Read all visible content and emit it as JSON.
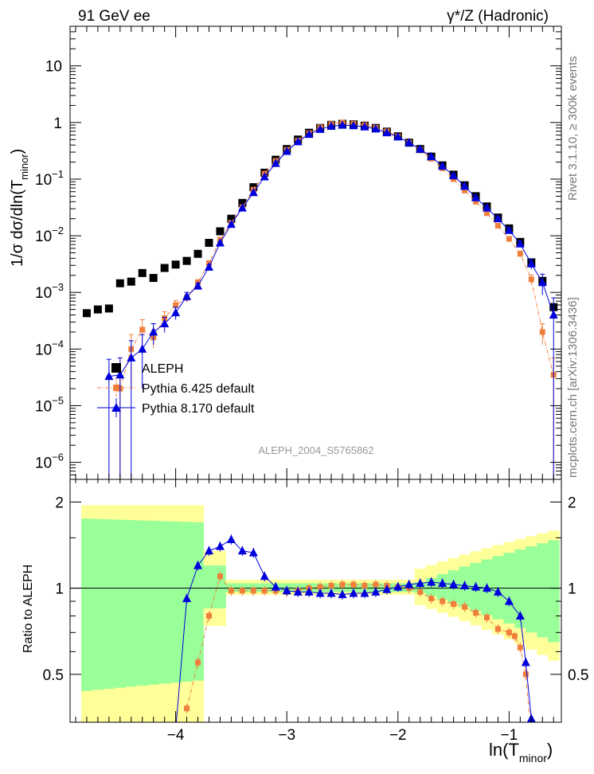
{
  "header": {
    "left": "91 GeV ee",
    "right": "γ*/Z (Hadronic)"
  },
  "side_labels": {
    "rivet": "Rivet 3.1.10, ≥ 300k events",
    "mcplots": "mcplots.cern.ch [arXiv:1306.3436]"
  },
  "analysis_id": "ALEPH_2004_S5765862",
  "axes": {
    "main_ylabel": "1/σ  dσ/dln(T",
    "main_ylabel_sub": "minor",
    "main_ylabel_close": ")",
    "ratio_ylabel": "Ratio to ALEPH",
    "xlabel": "ln(T",
    "xlabel_sub": "minor",
    "xlabel_close": ")",
    "x_ticks": [
      "−4",
      "−3",
      "−2",
      "−1"
    ],
    "y_ticks_main": [
      {
        "base": "10",
        "exp": "−6"
      },
      {
        "base": "10",
        "exp": "−5"
      },
      {
        "base": "10",
        "exp": "−4"
      },
      {
        "base": "10",
        "exp": "−3"
      },
      {
        "base": "10",
        "exp": "−2"
      },
      {
        "base": "10",
        "exp": "−1"
      },
      {
        "base": "1",
        "exp": ""
      },
      {
        "base": "10",
        "exp": ""
      }
    ],
    "y_ticks_ratio": [
      "0.5",
      "1",
      "2"
    ]
  },
  "legend": [
    {
      "label": "ALEPH",
      "color": "#000000",
      "marker": "square"
    },
    {
      "label": "Pythia 6.425 default",
      "color": "#f07f3c",
      "marker": "square"
    },
    {
      "label": "Pythia 8.170 default",
      "color": "#0000dd",
      "marker": "triangle"
    }
  ],
  "chart_data": {
    "type": "scatter",
    "title": "91 GeV ee — γ*/Z (Hadronic)",
    "xlabel": "ln(T_minor)",
    "ylabel": "1/σ dσ/dln(T_minor)",
    "ratio_ylabel": "Ratio to ALEPH",
    "xlim": [
      -4.95,
      -0.53
    ],
    "ylim": [
      5e-07,
      50
    ],
    "ylog": true,
    "ratio_ylim": [
      0.34,
      2.4
    ],
    "x": [
      -4.8,
      -4.7,
      -4.6,
      -4.5,
      -4.4,
      -4.3,
      -4.2,
      -4.1,
      -4.0,
      -3.9,
      -3.8,
      -3.7,
      -3.6,
      -3.5,
      -3.4,
      -3.3,
      -3.2,
      -3.1,
      -3.0,
      -2.9,
      -2.8,
      -2.7,
      -2.6,
      -2.5,
      -2.4,
      -2.3,
      -2.2,
      -2.1,
      -2.0,
      -1.9,
      -1.8,
      -1.7,
      -1.6,
      -1.5,
      -1.4,
      -1.3,
      -1.2,
      -1.1,
      -1.0,
      -0.9,
      -0.8,
      -0.7,
      -0.6
    ],
    "series": [
      {
        "name": "ALEPH",
        "color": "#000000",
        "values": [
          0.00043,
          0.0005,
          0.00052,
          0.00145,
          0.00155,
          0.0022,
          0.0018,
          0.0027,
          0.0031,
          0.0036,
          0.0048,
          0.0075,
          0.012,
          0.02,
          0.038,
          0.072,
          0.13,
          0.22,
          0.34,
          0.5,
          0.66,
          0.8,
          0.91,
          0.95,
          0.93,
          0.88,
          0.8,
          0.69,
          0.57,
          0.44,
          0.34,
          0.25,
          0.175,
          0.12,
          0.078,
          0.05,
          0.033,
          0.021,
          0.0135,
          0.0078,
          0.0034,
          0.0016,
          0.00055
        ],
        "rel_err": 0.04
      },
      {
        "name": "Pythia 6.425 default",
        "color": "#f07f3c",
        "values": [
          null,
          null,
          null,
          2e-05,
          0.0001,
          0.00022,
          0.00016,
          0.00035,
          0.0006,
          0.0008,
          0.0015,
          0.0033,
          0.0085,
          0.017,
          0.032,
          0.065,
          0.125,
          0.21,
          0.33,
          0.48,
          0.65,
          0.82,
          0.94,
          1.0,
          0.96,
          0.9,
          0.81,
          0.7,
          0.57,
          0.44,
          0.33,
          0.23,
          0.155,
          0.1,
          0.063,
          0.04,
          0.025,
          0.015,
          0.0088,
          0.0048,
          0.0017,
          0.0002,
          3.5e-05
        ],
        "rel_err": [
          0,
          0,
          0,
          1.0,
          0.8,
          0.5,
          0.35,
          0.3,
          0.2,
          0.15,
          0.12,
          0.09,
          0.07,
          0.05,
          0.04,
          0.03,
          0.02,
          0.02,
          0.02,
          0.015,
          0.015,
          0.015,
          0.015,
          0.015,
          0.015,
          0.015,
          0.015,
          0.015,
          0.02,
          0.02,
          0.02,
          0.03,
          0.03,
          0.04,
          0.05,
          0.06,
          0.07,
          0.08,
          0.1,
          0.12,
          0.2,
          0.4,
          1.0
        ]
      },
      {
        "name": "Pythia 8.170 default",
        "color": "#0000dd",
        "values": [
          null,
          null,
          3.3e-05,
          3.5e-05,
          7e-05,
          0.0001,
          0.0002,
          0.00028,
          0.00044,
          0.00085,
          0.0013,
          0.0028,
          0.0075,
          0.016,
          0.031,
          0.058,
          0.11,
          0.19,
          0.31,
          0.46,
          0.62,
          0.76,
          0.86,
          0.9,
          0.88,
          0.84,
          0.77,
          0.66,
          0.56,
          0.44,
          0.34,
          0.25,
          0.17,
          0.115,
          0.075,
          0.047,
          0.031,
          0.02,
          0.0125,
          0.0072,
          0.0032,
          0.0015,
          0.0004
        ],
        "rel_err": [
          0,
          0,
          1.0,
          1.0,
          1.0,
          0.8,
          0.4,
          0.3,
          0.25,
          0.18,
          0.12,
          0.09,
          0.06,
          0.05,
          0.04,
          0.03,
          0.02,
          0.02,
          0.02,
          0.015,
          0.015,
          0.015,
          0.015,
          0.015,
          0.015,
          0.015,
          0.015,
          0.015,
          0.02,
          0.02,
          0.02,
          0.03,
          0.03,
          0.04,
          0.05,
          0.06,
          0.07,
          0.08,
          0.1,
          0.12,
          0.2,
          0.4,
          1.0
        ]
      }
    ],
    "ratio_series": [
      {
        "name": "Pythia 6.425 default",
        "color": "#f07f3c",
        "x": [
          -3.9,
          -3.8,
          -3.7,
          -3.6,
          -3.5,
          -3.4,
          -3.3,
          -3.2,
          -3.1,
          -3.0,
          -2.9,
          -2.8,
          -2.7,
          -2.6,
          -2.5,
          -2.4,
          -2.3,
          -2.2,
          -2.1,
          -2.0,
          -1.9,
          -1.8,
          -1.7,
          -1.6,
          -1.5,
          -1.4,
          -1.3,
          -1.2,
          -1.1,
          -1.0,
          -0.95,
          -0.9,
          -0.85,
          -0.8
        ],
        "values": [
          0.38,
          0.55,
          0.8,
          1.1,
          0.98,
          0.98,
          0.98,
          0.98,
          0.98,
          0.97,
          0.98,
          1.0,
          1.01,
          1.02,
          1.03,
          1.03,
          1.02,
          1.03,
          1.02,
          1.01,
          1.0,
          0.97,
          0.92,
          0.9,
          0.88,
          0.86,
          0.82,
          0.79,
          0.72,
          0.7,
          0.68,
          0.62,
          0.5,
          0.3
        ]
      },
      {
        "name": "Pythia 8.170 default",
        "color": "#0000dd",
        "x": [
          -4.1,
          -4.0,
          -3.9,
          -3.8,
          -3.7,
          -3.6,
          -3.5,
          -3.4,
          -3.3,
          -3.2,
          -3.1,
          -3.0,
          -2.9,
          -2.8,
          -2.7,
          -2.6,
          -2.5,
          -2.4,
          -2.3,
          -2.2,
          -2.1,
          -2.0,
          -1.9,
          -1.8,
          -1.7,
          -1.6,
          -1.5,
          -1.4,
          -1.3,
          -1.2,
          -1.1,
          -1.0,
          -0.9,
          -0.85,
          -0.8
        ],
        "values": [
          0.2,
          0.32,
          0.92,
          1.2,
          1.35,
          1.4,
          1.48,
          1.35,
          1.33,
          1.1,
          1.01,
          0.98,
          0.97,
          0.97,
          0.96,
          0.96,
          0.95,
          0.96,
          0.96,
          0.97,
          0.99,
          1.01,
          1.03,
          1.04,
          1.05,
          1.04,
          1.03,
          1.02,
          1.01,
          1.0,
          0.97,
          0.9,
          0.8,
          0.55,
          0.35
        ]
      }
    ]
  }
}
